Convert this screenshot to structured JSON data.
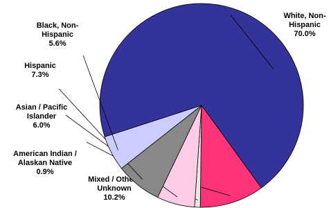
{
  "chart_data": {
    "type": "pie",
    "categories": [
      "White, Non-\nHispanic",
      "Mixed / Other /\nUnknown",
      "American Indian /\nAlaskan Native",
      "Asian / Pacific\nIslander",
      "Hispanic",
      "Black, Non-\nHispanic"
    ],
    "values": [
      70.0,
      10.2,
      0.9,
      6.0,
      7.3,
      5.6
    ],
    "value_labels": [
      "70.0%",
      "10.2%",
      "0.9%",
      "6.0%",
      "7.3%",
      "5.6%"
    ],
    "colors": [
      "#333399",
      "#ff3377",
      "#e8e8e8",
      "#ffcce6",
      "#888888",
      "#ccccff"
    ]
  }
}
